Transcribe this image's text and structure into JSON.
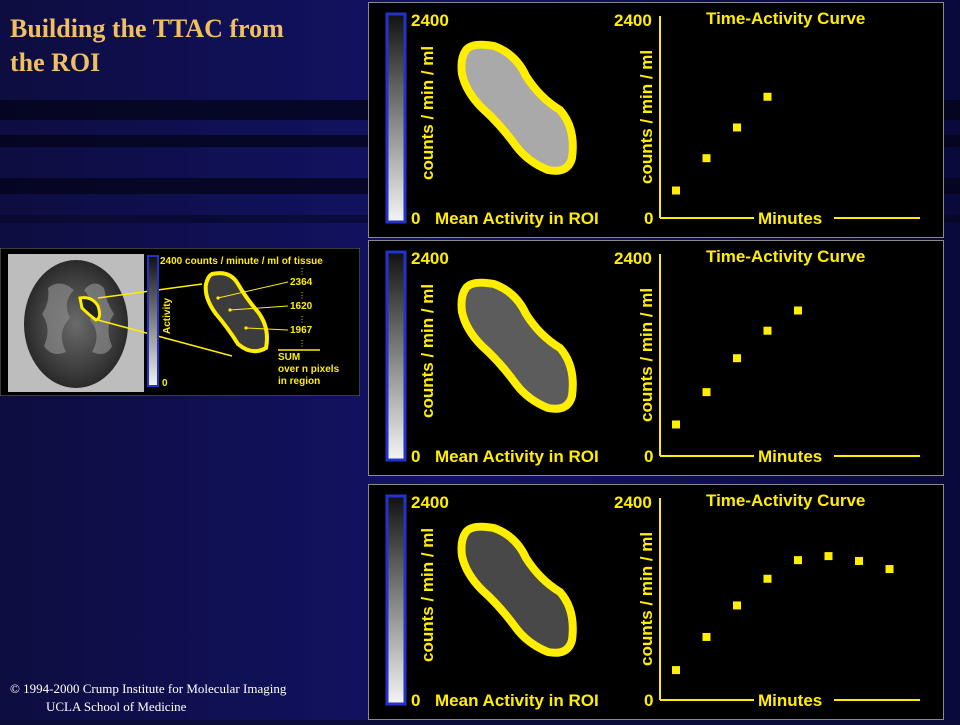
{
  "slide": {
    "title_line1": "Building the TTAC from",
    "title_line2": "the ROI",
    "copyright_line1": "© 1994-2000 Crump Institute for Molecular Imaging",
    "copyright_line2": "UCLA School of Medicine"
  },
  "inset": {
    "header": "2400 counts / minute / ml of tissue",
    "axis_label": "Activity",
    "scale_min": "0",
    "values": [
      "2364",
      "1620",
      "1967"
    ],
    "sum_label": "SUM",
    "sum_line2": "over n pixels",
    "sum_line3": "in region",
    "colors": {
      "roi": "#ffee00",
      "text": "#ffee00",
      "scale_frame": "#2233cc"
    }
  },
  "panels": [
    {
      "scale_max": "2400",
      "scale_min": "0",
      "left_ylabel": "counts / min / ml",
      "left_xlabel": "Mean Activity in ROI",
      "chart_data": {
        "type": "scatter",
        "title": "Time-Activity Curve",
        "ylabel": "counts / min / ml",
        "xlabel": "Minutes",
        "ytick_labels": [
          "2400",
          "0"
        ],
        "ylim": [
          0,
          2400
        ],
        "x": [
          1,
          2,
          3,
          4
        ],
        "y": [
          340,
          740,
          1120,
          1500
        ]
      }
    },
    {
      "scale_max": "2400",
      "scale_min": "0",
      "left_ylabel": "counts / min / ml",
      "left_xlabel": "Mean Activity in ROI",
      "chart_data": {
        "type": "scatter",
        "title": "Time-Activity Curve",
        "ylabel": "counts / min / ml",
        "xlabel": "Minutes",
        "ytick_labels": [
          "2400",
          "0"
        ],
        "ylim": [
          0,
          2400
        ],
        "x": [
          1,
          2,
          3,
          4,
          5
        ],
        "y": [
          390,
          790,
          1210,
          1550,
          1800
        ]
      }
    },
    {
      "scale_max": "2400",
      "scale_min": "0",
      "left_ylabel": "counts / min / ml",
      "left_xlabel": "Mean Activity in ROI",
      "chart_data": {
        "type": "scatter",
        "title": "Time-Activity Curve",
        "ylabel": "counts / min / ml",
        "xlabel": "Minutes",
        "ytick_labels": [
          "2400",
          "0"
        ],
        "ylim": [
          0,
          2400
        ],
        "x": [
          1,
          2,
          3,
          4,
          5,
          6,
          7,
          8
        ],
        "y": [
          370,
          780,
          1170,
          1500,
          1730,
          1780,
          1720,
          1620
        ]
      }
    }
  ],
  "colors": {
    "plot_text": "#ffee00",
    "roi_outline": "#ffee00",
    "panel_border": "#8a8a8a",
    "roi_fill_bright": "#a9a9a9",
    "roi_fill_mid": "#5c5c5c",
    "roi_fill_dark": "#484848"
  }
}
